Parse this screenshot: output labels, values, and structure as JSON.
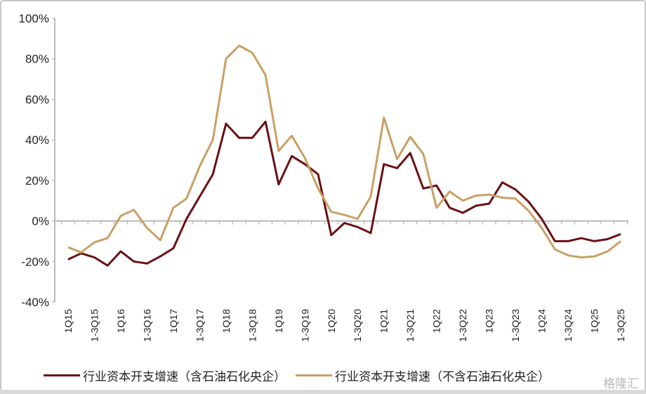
{
  "chart_data": {
    "type": "line",
    "title": "",
    "xlabel": "",
    "ylabel": "",
    "ylim": [
      -40,
      100
    ],
    "yticks": [
      -40,
      -20,
      0,
      20,
      40,
      60,
      80,
      100
    ],
    "ytick_labels": [
      "-40%",
      "-20%",
      "0%",
      "20%",
      "40%",
      "60%",
      "80%",
      "100%"
    ],
    "y_unit": "%",
    "grid": false,
    "legend_position": "bottom",
    "x_tick_labels": [
      "1Q15",
      "1-3Q15",
      "1Q16",
      "1-3Q16",
      "1Q17",
      "1-3Q17",
      "1Q18",
      "1-3Q18",
      "1Q19",
      "1-3Q19",
      "1Q20",
      "1-3Q20",
      "1Q21",
      "1-3Q21",
      "1Q22",
      "1-3Q22",
      "1Q23",
      "1-3Q23",
      "1Q24",
      "1-3Q24",
      "1Q25",
      "1-3Q25"
    ],
    "x_tick_every": 2,
    "series": [
      {
        "name": "行业资本开支增速（含石油石化央企）",
        "color": "#6b0f14",
        "values": [
          -19,
          -16,
          -18,
          -22,
          -15,
          -20,
          -21,
          -17.5,
          -13.5,
          1,
          12,
          23,
          48,
          41,
          41,
          49,
          18,
          32,
          28,
          23,
          -7,
          -1,
          -3,
          -6,
          28,
          26,
          33.5,
          16,
          17.5,
          6.5,
          4,
          7.5,
          8.5,
          19,
          15.5,
          9.5,
          1,
          -10,
          -10,
          -8.5,
          -10,
          -9,
          -6.5
        ]
      },
      {
        "name": "行业资本开支增速（不含石油石化央企）",
        "color": "#c9a064",
        "values": [
          -13,
          -15.5,
          -10.5,
          -8.5,
          2.5,
          5.5,
          -3.5,
          -9.5,
          6.5,
          11,
          27,
          40,
          80,
          86.5,
          83,
          72,
          34.5,
          42,
          31,
          16,
          4.5,
          3,
          1,
          12,
          51,
          30.5,
          41.5,
          33,
          6.5,
          14.5,
          10,
          12.5,
          13,
          11.5,
          11,
          5,
          -3.5,
          -14,
          -17,
          -18,
          -17.5,
          -15,
          -10
        ]
      }
    ]
  },
  "watermark": "格隆汇"
}
